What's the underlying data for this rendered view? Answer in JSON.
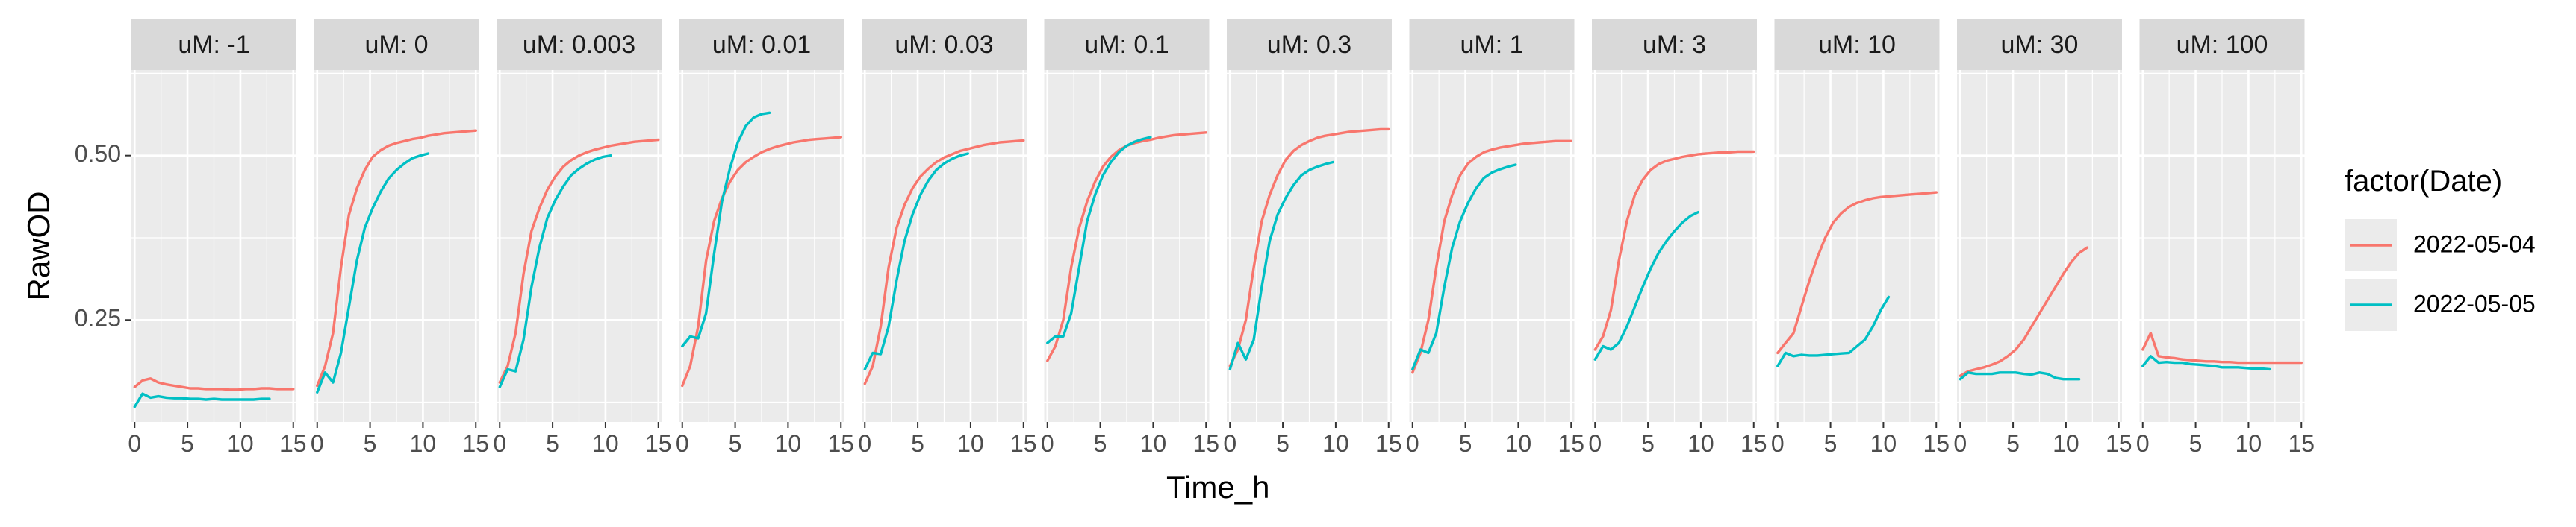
{
  "chart_data": {
    "type": "line",
    "xlabel": "Time_h",
    "ylabel": "RawOD",
    "xlim": [
      -0.3,
      15.3
    ],
    "ylim": [
      0.095,
      0.63
    ],
    "x_ticks": [
      0,
      5,
      10,
      15
    ],
    "x_tick_labels": [
      "0",
      "5",
      "10",
      "15"
    ],
    "y_ticks": [
      0.25,
      0.5
    ],
    "y_tick_labels": [
      "0.25",
      "0.50"
    ],
    "grid": true,
    "legend": {
      "title": "factor(Date)",
      "position": "right",
      "entries": [
        "2022-05-04",
        "2022-05-05"
      ]
    },
    "colors": {
      "2022-05-04": "#F8766D",
      "2022-05-05": "#00BFC4"
    },
    "x": [
      0,
      0.75,
      1.5,
      2.25,
      3,
      3.75,
      4.5,
      5.25,
      6,
      6.75,
      7.5,
      8.25,
      9,
      9.75,
      10.5,
      11.25,
      12,
      12.75,
      13.5,
      14.25,
      15
    ],
    "facets": [
      {
        "label": "uM: -1",
        "series": [
          {
            "name": "2022-05-04",
            "values": [
              0.148,
              0.158,
              0.161,
              0.155,
              0.152,
              0.15,
              0.148,
              0.146,
              0.146,
              0.145,
              0.145,
              0.145,
              0.144,
              0.144,
              0.145,
              0.145,
              0.146,
              0.146,
              0.145,
              0.145,
              0.145
            ]
          },
          {
            "name": "2022-05-05",
            "values": [
              0.118,
              0.138,
              0.132,
              0.134,
              0.132,
              0.131,
              0.131,
              0.13,
              0.13,
              0.129,
              0.13,
              0.129,
              0.129,
              0.129,
              0.129,
              0.129,
              0.13,
              0.13,
              null,
              null,
              null
            ]
          }
        ]
      },
      {
        "label": "uM: 0",
        "series": [
          {
            "name": "2022-05-04",
            "values": [
              0.15,
              0.18,
              0.23,
              0.33,
              0.41,
              0.45,
              0.478,
              0.498,
              0.508,
              0.515,
              0.519,
              0.522,
              0.525,
              0.527,
              0.53,
              0.532,
              0.534,
              0.535,
              0.536,
              0.537,
              0.538
            ]
          },
          {
            "name": "2022-05-05",
            "values": [
              0.14,
              0.17,
              0.155,
              0.2,
              0.27,
              0.34,
              0.39,
              0.42,
              0.445,
              0.465,
              0.478,
              0.488,
              0.496,
              0.5,
              0.503,
              null,
              null,
              null,
              null,
              null,
              null
            ]
          }
        ]
      },
      {
        "label": "uM: 0.003",
        "series": [
          {
            "name": "2022-05-04",
            "values": [
              0.155,
              0.18,
              0.23,
              0.32,
              0.385,
              0.42,
              0.448,
              0.468,
              0.483,
              0.493,
              0.5,
              0.505,
              0.509,
              0.512,
              0.515,
              0.517,
              0.519,
              0.521,
              0.522,
              0.523,
              0.524
            ]
          },
          {
            "name": "2022-05-05",
            "values": [
              0.148,
              0.175,
              0.172,
              0.22,
              0.3,
              0.36,
              0.405,
              0.432,
              0.453,
              0.47,
              0.48,
              0.488,
              0.494,
              0.498,
              0.5,
              null,
              null,
              null,
              null,
              null,
              null
            ]
          }
        ]
      },
      {
        "label": "uM: 0.01",
        "series": [
          {
            "name": "2022-05-04",
            "values": [
              0.15,
              0.18,
              0.24,
              0.34,
              0.4,
              0.435,
              0.46,
              0.478,
              0.49,
              0.498,
              0.505,
              0.51,
              0.514,
              0.517,
              0.52,
              0.522,
              0.524,
              0.525,
              0.526,
              0.527,
              0.528
            ]
          },
          {
            "name": "2022-05-05",
            "values": [
              0.21,
              0.225,
              0.222,
              0.26,
              0.35,
              0.43,
              0.48,
              0.52,
              0.545,
              0.558,
              0.563,
              0.565,
              null,
              null,
              null,
              null,
              null,
              null,
              null,
              null,
              null
            ]
          }
        ]
      },
      {
        "label": "uM: 0.03",
        "series": [
          {
            "name": "2022-05-04",
            "values": [
              0.153,
              0.18,
              0.24,
              0.33,
              0.39,
              0.425,
              0.45,
              0.468,
              0.48,
              0.49,
              0.497,
              0.502,
              0.507,
              0.51,
              0.513,
              0.516,
              0.518,
              0.52,
              0.521,
              0.522,
              0.523
            ]
          },
          {
            "name": "2022-05-05",
            "values": [
              0.175,
              0.2,
              0.198,
              0.24,
              0.31,
              0.37,
              0.41,
              0.44,
              0.462,
              0.478,
              0.488,
              0.495,
              0.5,
              0.503,
              null,
              null,
              null,
              null,
              null,
              null,
              null
            ]
          }
        ]
      },
      {
        "label": "uM: 0.1",
        "series": [
          {
            "name": "2022-05-04",
            "values": [
              0.188,
              0.21,
              0.25,
              0.33,
              0.39,
              0.43,
              0.46,
              0.483,
              0.498,
              0.508,
              0.515,
              0.519,
              0.522,
              0.524,
              0.527,
              0.529,
              0.531,
              0.532,
              0.533,
              0.534,
              0.535
            ]
          },
          {
            "name": "2022-05-05",
            "values": [
              0.215,
              0.225,
              0.225,
              0.26,
              0.33,
              0.4,
              0.44,
              0.47,
              0.49,
              0.505,
              0.515,
              0.521,
              0.525,
              0.528,
              null,
              null,
              null,
              null,
              null,
              null,
              null
            ]
          }
        ]
      },
      {
        "label": "uM: 0.3",
        "series": [
          {
            "name": "2022-05-04",
            "values": [
              0.18,
              0.205,
              0.25,
              0.33,
              0.4,
              0.44,
              0.47,
              0.493,
              0.507,
              0.516,
              0.522,
              0.527,
              0.53,
              0.532,
              0.534,
              0.536,
              0.537,
              0.538,
              0.539,
              0.54,
              0.54
            ]
          },
          {
            "name": "2022-05-05",
            "values": [
              0.175,
              0.215,
              0.19,
              0.22,
              0.3,
              0.37,
              0.41,
              0.435,
              0.455,
              0.47,
              0.478,
              0.483,
              0.487,
              0.49,
              null,
              null,
              null,
              null,
              null,
              null,
              null
            ]
          }
        ]
      },
      {
        "label": "uM: 1",
        "series": [
          {
            "name": "2022-05-04",
            "values": [
              0.17,
              0.2,
              0.25,
              0.33,
              0.4,
              0.44,
              0.47,
              0.488,
              0.498,
              0.505,
              0.509,
              0.512,
              0.514,
              0.516,
              0.518,
              0.519,
              0.52,
              0.521,
              0.522,
              0.522,
              0.522
            ]
          },
          {
            "name": "2022-05-05",
            "values": [
              0.175,
              0.205,
              0.2,
              0.23,
              0.3,
              0.36,
              0.4,
              0.428,
              0.45,
              0.466,
              0.474,
              0.479,
              0.483,
              0.486,
              null,
              null,
              null,
              null,
              null,
              null,
              null
            ]
          }
        ]
      },
      {
        "label": "uM: 3",
        "series": [
          {
            "name": "2022-05-04",
            "values": [
              0.205,
              0.225,
              0.265,
              0.34,
              0.4,
              0.44,
              0.463,
              0.478,
              0.487,
              0.492,
              0.495,
              0.498,
              0.5,
              0.502,
              0.503,
              0.504,
              0.505,
              0.505,
              0.506,
              0.506,
              0.506
            ]
          },
          {
            "name": "2022-05-05",
            "values": [
              0.19,
              0.21,
              0.205,
              0.215,
              0.24,
              0.27,
              0.3,
              0.328,
              0.352,
              0.37,
              0.385,
              0.398,
              0.408,
              0.414,
              null,
              null,
              null,
              null,
              null,
              null,
              null
            ]
          }
        ]
      },
      {
        "label": "uM: 10",
        "series": [
          {
            "name": "2022-05-04",
            "values": [
              0.2,
              0.215,
              0.23,
              0.27,
              0.31,
              0.345,
              0.375,
              0.398,
              0.412,
              0.422,
              0.428,
              0.432,
              0.435,
              0.437,
              0.438,
              0.439,
              0.44,
              0.441,
              0.442,
              0.443,
              0.444
            ]
          },
          {
            "name": "2022-05-05",
            "values": [
              0.18,
              0.2,
              0.195,
              0.197,
              0.196,
              0.196,
              0.197,
              0.198,
              0.199,
              0.2,
              0.21,
              0.22,
              0.24,
              0.265,
              0.285,
              null,
              null,
              null,
              null,
              null,
              null
            ]
          }
        ]
      },
      {
        "label": "uM: 30",
        "series": [
          {
            "name": "2022-05-04",
            "values": [
              0.165,
              0.172,
              0.175,
              0.178,
              0.182,
              0.187,
              0.195,
              0.205,
              0.22,
              0.24,
              0.26,
              0.28,
              0.3,
              0.32,
              0.338,
              0.352,
              0.36,
              null,
              null,
              null,
              null
            ]
          },
          {
            "name": "2022-05-05",
            "values": [
              0.16,
              0.17,
              0.168,
              0.168,
              0.168,
              0.17,
              0.17,
              0.17,
              0.168,
              0.167,
              0.17,
              0.168,
              0.162,
              0.16,
              0.16,
              0.16,
              null,
              null,
              null,
              null,
              null
            ]
          }
        ]
      },
      {
        "label": "uM: 100",
        "series": [
          {
            "name": "2022-05-04",
            "values": [
              0.205,
              0.23,
              0.195,
              0.193,
              0.192,
              0.19,
              0.189,
              0.188,
              0.187,
              0.187,
              0.186,
              0.186,
              0.185,
              0.185,
              0.185,
              0.185,
              0.185,
              0.185,
              0.185,
              0.185,
              0.185
            ]
          },
          {
            "name": "2022-05-05",
            "values": [
              0.18,
              0.195,
              0.185,
              0.186,
              0.185,
              0.185,
              0.183,
              0.182,
              0.181,
              0.18,
              0.178,
              0.178,
              0.178,
              0.177,
              0.176,
              0.176,
              0.175,
              null,
              null,
              null,
              null
            ]
          }
        ]
      }
    ]
  }
}
